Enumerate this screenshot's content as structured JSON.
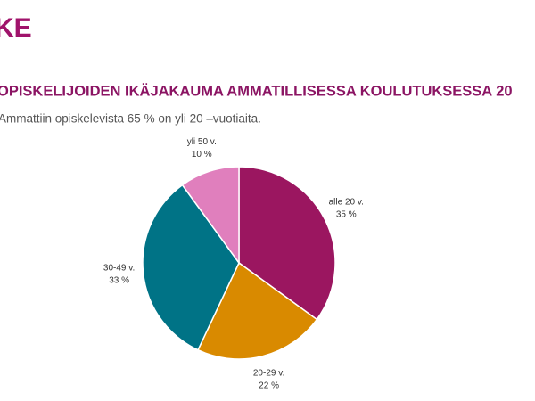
{
  "logo": "KE",
  "chart_data": {
    "type": "pie",
    "title": "OPISKELIJOIDEN IKÄJAKAUMA AMMATILLISESSA KOULUTUKSESSA 20",
    "subtitle": "Ammattiin opiskelevista 65 % on yli 20 –vuotiaita.",
    "categories": [
      "alle 20 v.",
      "20-29 v.",
      "30-49 v.",
      "yli 50 v."
    ],
    "values": [
      35,
      22,
      33,
      10
    ],
    "value_labels": [
      "35 %",
      "22 %",
      "33 %",
      "10 %"
    ],
    "colors": [
      "#9b1660",
      "#d98a00",
      "#007386",
      "#e07fbd"
    ]
  }
}
